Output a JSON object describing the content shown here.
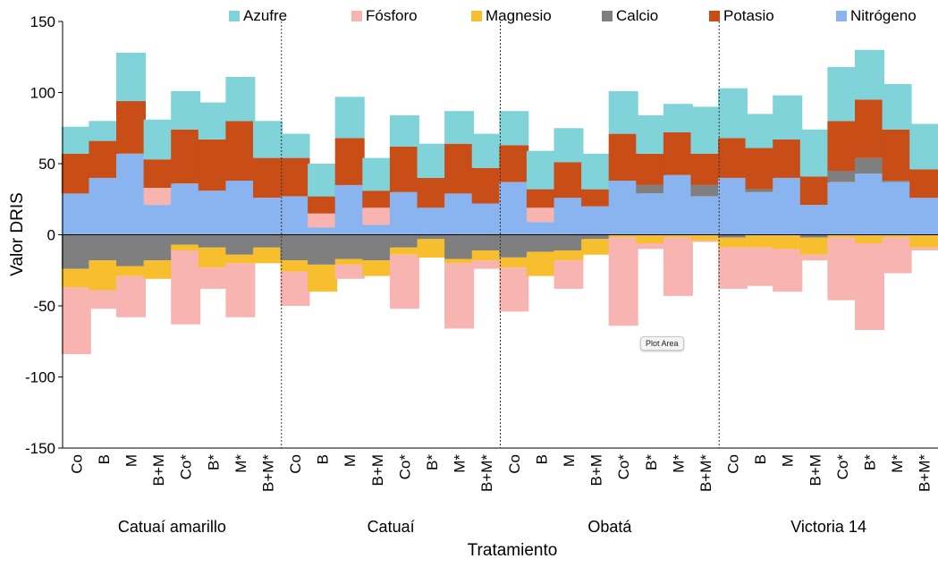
{
  "chart_data": {
    "type": "bar",
    "stacked": true,
    "ylabel": "Valor DRIS",
    "xlabel": "Tratamiento",
    "ylim": [
      -150,
      150
    ],
    "yticks": [
      -150,
      -100,
      -50,
      0,
      50,
      100,
      150
    ],
    "legend_position": "top",
    "groups": [
      "Catuaí amarillo",
      "Catuaí",
      "Obatá",
      "Victoria 14"
    ],
    "treatments": [
      "Co",
      "B",
      "M",
      "B+M",
      "Co*",
      "B*",
      "M*",
      "B+M*"
    ],
    "categories": [
      "Co",
      "B",
      "M",
      "B+M",
      "Co*",
      "B*",
      "M*",
      "B+M*",
      "Co",
      "B",
      "M",
      "B+M",
      "Co*",
      "B*",
      "M*",
      "B+M*",
      "Co",
      "B",
      "M",
      "B+M",
      "Co*",
      "B*",
      "M*",
      "B+M*",
      "Co",
      "B",
      "M",
      "B+M",
      "Co*",
      "B*",
      "M*",
      "B+M*"
    ],
    "stack_order": [
      "Nitrógeno",
      "Calcio",
      "Magnesio",
      "Fósforo",
      "Potasio",
      "Azufre"
    ],
    "legend_order": [
      "Azufre",
      "Fósforo",
      "Magnesio",
      "Calcio",
      "Potasio",
      "Nitrógeno"
    ],
    "series": [
      {
        "name": "Nitrógeno",
        "color": "#8ab4f0",
        "values": [
          29,
          40,
          57,
          21,
          36,
          31,
          38,
          26,
          27,
          5,
          35,
          7,
          30,
          19,
          29,
          22,
          37,
          9,
          26,
          20,
          38,
          29,
          42,
          27,
          40,
          30,
          40,
          21,
          37,
          43,
          37,
          26
        ]
      },
      {
        "name": "Calcio",
        "color": "#7f7f7f",
        "values": [
          -24,
          -18,
          -22,
          -18,
          -7,
          -9,
          -14,
          -9,
          -18,
          -21,
          -17,
          -18,
          -9,
          -3,
          -17,
          -11,
          -16,
          -12,
          -11,
          -3,
          0,
          6,
          0,
          8,
          -2,
          2,
          0,
          -2,
          8,
          11,
          1,
          0
        ]
      },
      {
        "name": "Magnesio",
        "color": "#f7be2e",
        "values": [
          -13,
          -21,
          -7,
          -13,
          -4,
          -14,
          -6,
          -11,
          -8,
          -19,
          -4,
          -11,
          -5,
          -13,
          -3,
          -7,
          -7,
          -17,
          -7,
          -11,
          -2,
          -6,
          -2,
          -4,
          -7,
          -9,
          -10,
          -12,
          -2,
          -6,
          -2,
          -9
        ]
      },
      {
        "name": "Fósforo",
        "color": "#f8b4b0",
        "values": [
          -47,
          -13,
          -29,
          12,
          -52,
          -15,
          -38,
          0,
          -24,
          10,
          -10,
          12,
          -38,
          0,
          -46,
          -6,
          -31,
          10,
          -20,
          0,
          -62,
          -4,
          -41,
          -1,
          -29,
          -27,
          -30,
          -4,
          -44,
          -61,
          -25,
          -2
        ]
      },
      {
        "name": "Potasio",
        "color": "#c84d17",
        "values": [
          28,
          26,
          37,
          20,
          38,
          36,
          42,
          28,
          27,
          12,
          33,
          12,
          32,
          21,
          35,
          25,
          26,
          13,
          25,
          12,
          33,
          22,
          30,
          22,
          28,
          29,
          27,
          20,
          35,
          41,
          36,
          20
        ]
      },
      {
        "name": "Azufre",
        "color": "#7fd3d9",
        "values": [
          19,
          14,
          34,
          28,
          27,
          26,
          31,
          26,
          17,
          23,
          29,
          23,
          22,
          24,
          23,
          24,
          24,
          27,
          24,
          25,
          30,
          27,
          20,
          33,
          35,
          24,
          31,
          33,
          38,
          35,
          32,
          32
        ]
      }
    ]
  },
  "annotation": {
    "tooltip_text": "Plot Area"
  }
}
